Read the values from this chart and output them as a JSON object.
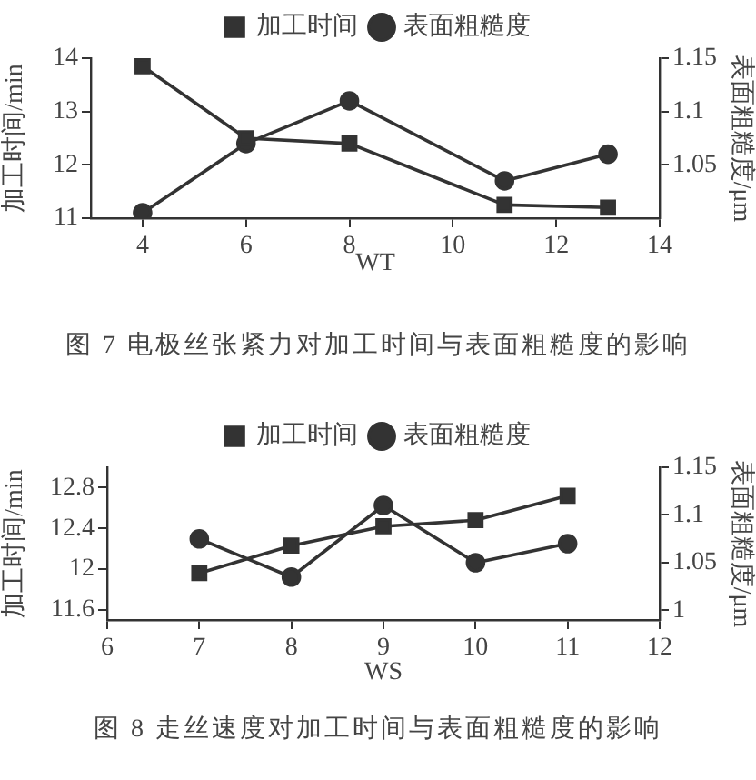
{
  "chart_data": [
    {
      "type": "line",
      "title": "图 7 电极丝张紧力对加工时间与表面粗糙度的影响",
      "xlabel": "WT",
      "ylabel": "加工时间/min",
      "y2label": "表面粗糙度/μm",
      "legend": "top",
      "line_style": "solid",
      "x": [
        4,
        6,
        8,
        11,
        13
      ],
      "xlim": [
        3,
        14
      ],
      "xticks": [
        4,
        6,
        8,
        10,
        12,
        14
      ],
      "ylim": [
        11,
        14
      ],
      "yticks": [
        11,
        12,
        13,
        14
      ],
      "y2lim": [
        1,
        1.15
      ],
      "y2ticks": [
        1.05,
        1.1,
        1.15
      ],
      "series": [
        {
          "name": "加工时间",
          "color": "#333333",
          "marker": "square",
          "values": [
            13.85,
            12.5,
            12.4,
            11.25,
            11.2
          ]
        },
        {
          "name": "表面粗糙度",
          "color": "#333333",
          "marker": "circle",
          "axis": "y2",
          "values": [
            1.005,
            1.07,
            1.11,
            1.035,
            1.06
          ]
        }
      ]
    },
    {
      "type": "line",
      "title": "图 8 走丝速度对加工时间与表面粗糙度的影响",
      "xlabel": "WS",
      "ylabel": "加工时间/min",
      "y2label": "表面粗糙度/μm",
      "legend": "top",
      "line_style": "solid",
      "x": [
        7,
        8,
        9,
        10,
        11
      ],
      "xlim": [
        6,
        12
      ],
      "xticks": [
        6,
        7,
        8,
        9,
        10,
        11,
        12
      ],
      "ylim": [
        11.5,
        13
      ],
      "yticks": [
        11.6,
        12,
        12.4,
        12.8
      ],
      "y2lim": [
        0.99,
        1.15
      ],
      "y2ticks": [
        1,
        1.05,
        1.1,
        1.15
      ],
      "series": [
        {
          "name": "加工时间",
          "color": "#333333",
          "marker": "square",
          "values": [
            11.96,
            12.23,
            12.42,
            12.48,
            12.72
          ]
        },
        {
          "name": "表面粗糙度",
          "color": "#333333",
          "marker": "circle",
          "axis": "y2",
          "values": [
            1.075,
            1.035,
            1.11,
            1.05,
            1.07
          ]
        }
      ]
    }
  ]
}
